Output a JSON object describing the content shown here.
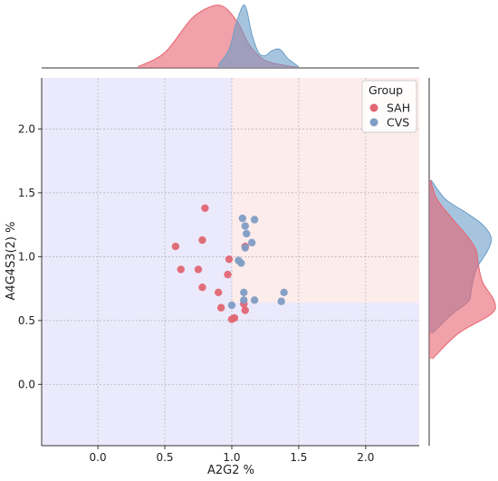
{
  "chart_data": {
    "type": "scatter",
    "xlabel": "A2G2 %",
    "ylabel": "A4G4S3(2) %",
    "xlim": [
      -0.42,
      2.4
    ],
    "ylim": [
      -0.48,
      2.4
    ],
    "xticks": [
      0.0,
      0.5,
      1.0,
      1.5,
      2.0
    ],
    "yticks": [
      0.0,
      0.5,
      1.0,
      1.5,
      2.0
    ],
    "xtick_labels": [
      "0.0",
      "0.5",
      "1.0",
      "1.5",
      "2.0"
    ],
    "ytick_labels": [
      "0.0",
      "0.5",
      "1.0",
      "1.5",
      "2.0"
    ],
    "grid": true,
    "legend": {
      "title": "Group",
      "placement": "top-right"
    },
    "regions": {
      "lower_region_color": "#ebeafc",
      "upper_right_region_color": "#fdecec",
      "x_threshold": 1.0,
      "y_threshold": 0.64
    },
    "series": [
      {
        "name": "SAH",
        "color": "#e06673",
        "fill": "#e8636f",
        "x": [
          0.58,
          0.62,
          0.75,
          0.78,
          0.8,
          0.78,
          0.9,
          0.92,
          0.97,
          0.98,
          1.0,
          1.02,
          1.09,
          1.1,
          1.1
        ],
        "y": [
          1.08,
          0.9,
          0.9,
          1.13,
          1.38,
          0.76,
          0.72,
          0.6,
          0.86,
          0.98,
          0.51,
          0.52,
          0.63,
          0.58,
          1.08
        ]
      },
      {
        "name": "CVS",
        "color": "#7f9dc4",
        "fill": "#6a9dc8",
        "x": [
          1.0,
          1.05,
          1.07,
          1.08,
          1.09,
          1.09,
          1.1,
          1.1,
          1.11,
          1.15,
          1.17,
          1.17,
          1.37,
          1.39
        ],
        "y": [
          0.62,
          0.97,
          0.95,
          1.3,
          0.72,
          0.66,
          1.24,
          1.07,
          1.18,
          1.11,
          1.29,
          0.66,
          0.65,
          0.72
        ]
      }
    ],
    "marginal_x_kde": {
      "SAH": {
        "x": [
          0.3,
          0.5,
          0.7,
          0.85,
          0.95,
          1.05,
          1.1,
          1.15,
          1.25,
          1.4,
          1.5
        ],
        "density": [
          0.02,
          0.25,
          0.8,
          1.0,
          0.98,
          0.72,
          0.5,
          0.32,
          0.12,
          0.04,
          0.01
        ]
      },
      "CVS": {
        "x": [
          0.9,
          0.98,
          1.03,
          1.08,
          1.11,
          1.15,
          1.2,
          1.25,
          1.3,
          1.36,
          1.42,
          1.5
        ],
        "density": [
          0.05,
          0.3,
          0.7,
          1.0,
          0.95,
          0.55,
          0.25,
          0.2,
          0.28,
          0.3,
          0.15,
          0.02
        ]
      }
    },
    "marginal_y_kde": {
      "SAH": {
        "y": [
          0.2,
          0.4,
          0.55,
          0.65,
          0.8,
          0.95,
          1.05,
          1.15,
          1.3,
          1.45,
          1.6
        ],
        "density": [
          0.05,
          0.45,
          0.95,
          1.0,
          0.82,
          0.75,
          0.72,
          0.6,
          0.35,
          0.12,
          0.02
        ]
      },
      "CVS": {
        "y": [
          0.4,
          0.55,
          0.65,
          0.75,
          0.9,
          1.05,
          1.15,
          1.25,
          1.35,
          1.45,
          1.6
        ],
        "density": [
          0.05,
          0.35,
          0.6,
          0.65,
          0.72,
          0.9,
          0.95,
          0.82,
          0.55,
          0.25,
          0.03
        ]
      }
    }
  }
}
